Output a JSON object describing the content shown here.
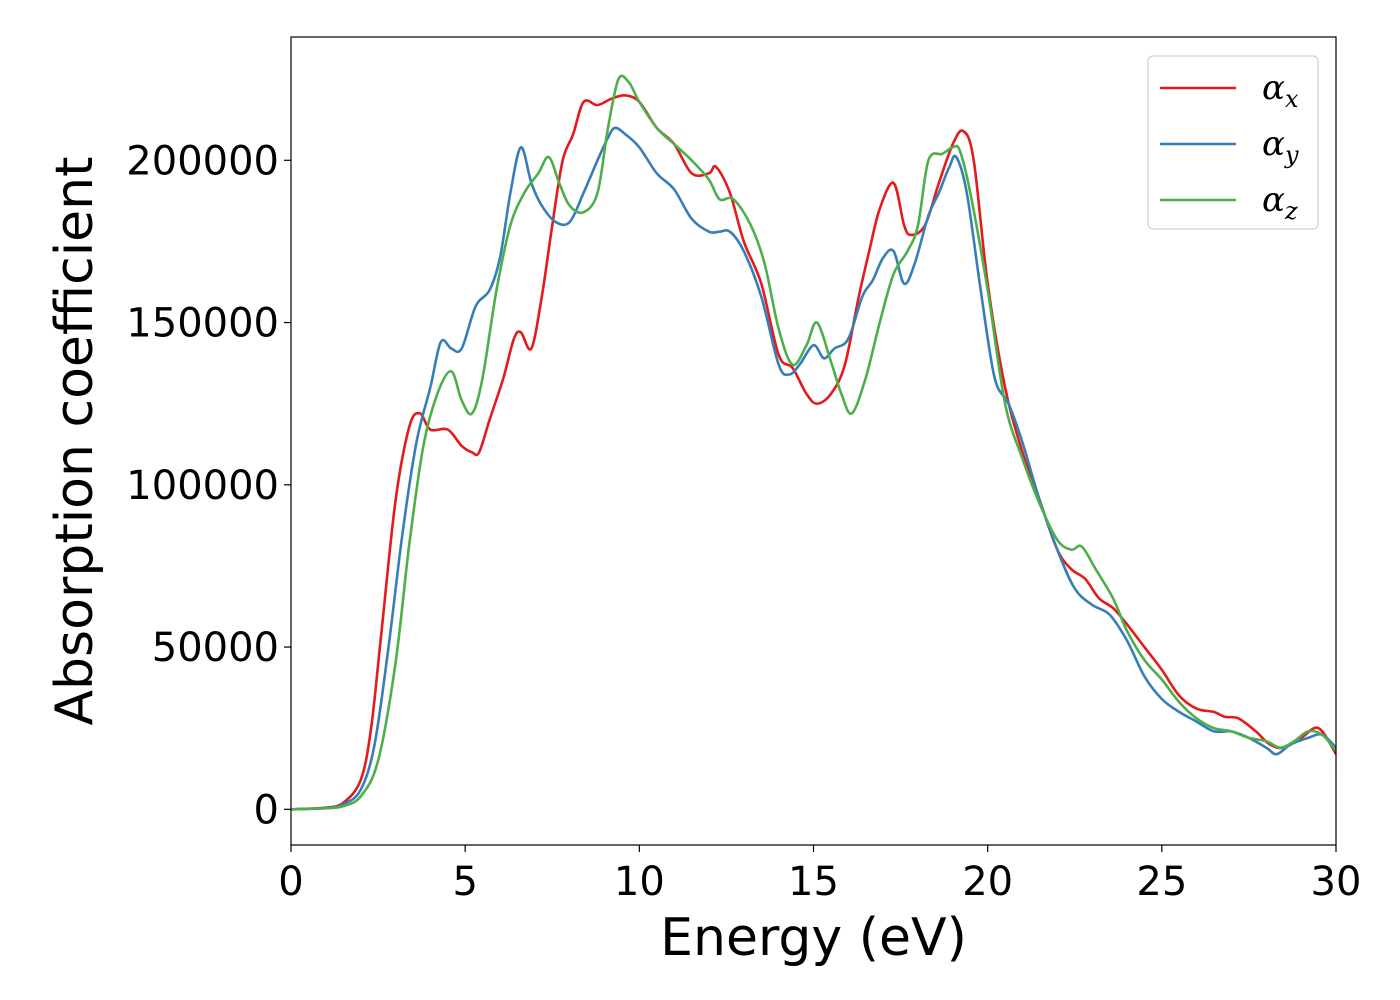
{
  "chart_data": {
    "type": "line",
    "title": "",
    "xlabel": "Energy (eV)",
    "ylabel": "Absorption coefficient",
    "xlim": [
      0,
      30
    ],
    "ylim": [
      -11000,
      238000
    ],
    "xticks": [
      0,
      5,
      10,
      15,
      20,
      25,
      30
    ],
    "xtick_labels": [
      "0",
      "5",
      "10",
      "15",
      "20",
      "25",
      "30"
    ],
    "yticks": [
      0,
      50000,
      100000,
      150000,
      200000
    ],
    "ytick_labels": [
      "0",
      "50000",
      "100000",
      "150000",
      "200000"
    ],
    "grid": false,
    "legend_position": "top-right",
    "series": [
      {
        "name": "α",
        "subscript": "x",
        "color": "#e41a1c",
        "x": [
          0,
          1,
          1.5,
          2,
          2.3,
          2.6,
          3.0,
          3.4,
          3.7,
          4.0,
          4.5,
          4.9,
          5.2,
          5.4,
          5.7,
          6.1,
          6.4,
          6.6,
          6.9,
          7.2,
          7.5,
          7.8,
          8.1,
          8.4,
          8.8,
          9.2,
          9.6,
          10.0,
          10.5,
          11.0,
          11.5,
          12.0,
          12.2,
          12.6,
          13.0,
          13.5,
          14.0,
          14.4,
          14.8,
          15.1,
          15.5,
          15.9,
          16.3,
          16.6,
          16.9,
          17.3,
          17.6,
          17.8,
          18.2,
          18.6,
          19.0,
          19.3,
          19.6,
          20.0,
          20.5,
          21.0,
          21.5,
          22.0,
          22.4,
          22.8,
          23.2,
          23.6,
          24.0,
          24.5,
          25.0,
          25.5,
          26.0,
          26.5,
          26.8,
          27.2,
          27.7,
          28.1,
          28.5,
          29.0,
          29.5,
          30.0
        ],
        "values": [
          0,
          500,
          2000,
          9000,
          25000,
          55000,
          95000,
          118000,
          122000,
          117000,
          117000,
          112000,
          110000,
          110000,
          120000,
          133000,
          145000,
          147000,
          142000,
          158000,
          180000,
          200000,
          208000,
          218000,
          217000,
          219000,
          220000,
          218000,
          210000,
          205000,
          196000,
          196000,
          198000,
          190000,
          175000,
          162000,
          140000,
          136000,
          128000,
          125000,
          128000,
          137000,
          158000,
          172000,
          185000,
          193000,
          180000,
          177000,
          180000,
          193000,
          205000,
          209000,
          200000,
          162000,
          130000,
          110000,
          95000,
          80000,
          74000,
          71000,
          65000,
          62000,
          57000,
          50000,
          43000,
          35000,
          31000,
          30000,
          28500,
          28000,
          24000,
          20000,
          19000,
          22000,
          25000,
          17000
        ]
      },
      {
        "name": "α",
        "subscript": "y",
        "color": "#377eb8",
        "x": [
          0,
          1,
          1.5,
          2,
          2.4,
          2.8,
          3.2,
          3.6,
          4.0,
          4.3,
          4.6,
          4.9,
          5.3,
          5.7,
          6.0,
          6.3,
          6.6,
          6.9,
          7.2,
          7.6,
          8.0,
          8.4,
          8.8,
          9.1,
          9.3,
          9.6,
          10.0,
          10.5,
          11.0,
          11.5,
          12.0,
          12.3,
          12.6,
          13.0,
          13.5,
          14.0,
          14.3,
          14.6,
          15.0,
          15.3,
          15.6,
          16.0,
          16.4,
          16.7,
          17.0,
          17.3,
          17.6,
          17.9,
          18.3,
          18.6,
          18.9,
          19.1,
          19.4,
          19.8,
          20.2,
          20.6,
          21.0,
          21.5,
          22.0,
          22.5,
          23.0,
          23.5,
          24.0,
          24.5,
          25.0,
          25.5,
          26.0,
          26.5,
          27.0,
          27.5,
          28.0,
          28.3,
          28.7,
          29.2,
          29.6,
          30.0
        ],
        "values": [
          0,
          400,
          1500,
          6000,
          20000,
          50000,
          85000,
          113000,
          130000,
          144000,
          142000,
          142000,
          155000,
          160000,
          170000,
          190000,
          204000,
          193000,
          186000,
          181000,
          181000,
          190000,
          200000,
          207000,
          210000,
          208000,
          204000,
          196000,
          191000,
          182000,
          178000,
          178000,
          178000,
          172000,
          158000,
          137000,
          134000,
          137000,
          143000,
          139000,
          142000,
          145000,
          158000,
          163000,
          170000,
          172000,
          162000,
          168000,
          183000,
          190000,
          198000,
          201000,
          190000,
          160000,
          133000,
          125000,
          113000,
          95000,
          80000,
          68000,
          63000,
          60000,
          52000,
          41000,
          34000,
          30000,
          27000,
          24000,
          24000,
          22000,
          19000,
          17000,
          20000,
          22000,
          23000,
          19000
        ]
      },
      {
        "name": "α",
        "subscript": "z",
        "color": "#4daf4a",
        "x": [
          0,
          1,
          1.5,
          2,
          2.5,
          3.0,
          3.4,
          3.8,
          4.2,
          4.6,
          4.9,
          5.2,
          5.5,
          5.9,
          6.3,
          6.7,
          7.1,
          7.4,
          7.7,
          8.0,
          8.4,
          8.8,
          9.1,
          9.4,
          9.7,
          10.0,
          10.5,
          11.0,
          11.5,
          12.0,
          12.3,
          12.7,
          13.2,
          13.6,
          14.0,
          14.4,
          14.8,
          15.1,
          15.5,
          15.8,
          16.1,
          16.5,
          16.9,
          17.3,
          17.7,
          18.0,
          18.3,
          18.7,
          19.0,
          19.2,
          19.5,
          20.0,
          20.5,
          21.0,
          21.5,
          22.0,
          22.4,
          22.7,
          23.1,
          23.6,
          24.0,
          24.5,
          25.0,
          25.5,
          26.0,
          26.5,
          27.0,
          27.5,
          28.0,
          28.4,
          28.8,
          29.2,
          29.6,
          30.0
        ],
        "values": [
          0,
          300,
          1000,
          4000,
          15000,
          45000,
          82000,
          112000,
          128000,
          135000,
          126000,
          122000,
          133000,
          160000,
          180000,
          190000,
          196000,
          201000,
          193000,
          186000,
          184000,
          190000,
          210000,
          225000,
          224000,
          218000,
          210000,
          205000,
          200000,
          194000,
          188000,
          188000,
          180000,
          168000,
          148000,
          137000,
          143000,
          150000,
          138000,
          128000,
          122000,
          133000,
          150000,
          165000,
          172000,
          180000,
          200000,
          202000,
          204000,
          203000,
          190000,
          160000,
          125000,
          108000,
          94000,
          83000,
          80000,
          81000,
          74000,
          65000,
          55000,
          46000,
          40000,
          33000,
          28000,
          25000,
          24000,
          22000,
          21000,
          19000,
          21000,
          24000,
          23000,
          18000
        ]
      }
    ]
  }
}
